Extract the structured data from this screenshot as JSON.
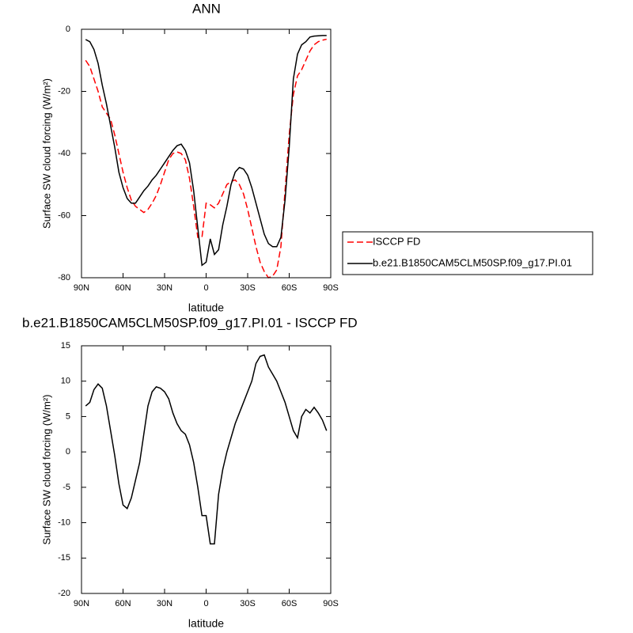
{
  "chart_data": [
    {
      "type": "line",
      "title": "ANN",
      "x_label": "latitude",
      "y_label": "Surface SW cloud forcing (W/m²)",
      "x": [
        87,
        84,
        81,
        78,
        75,
        72,
        69,
        66,
        63,
        60,
        57,
        54,
        51,
        48,
        45,
        42,
        39,
        36,
        33,
        30,
        27,
        24,
        21,
        18,
        15,
        12,
        9,
        6,
        3,
        0,
        -3,
        -6,
        -9,
        -12,
        -15,
        -18,
        -21,
        -24,
        -27,
        -30,
        -33,
        -36,
        -39,
        -42,
        -45,
        -48,
        -51,
        -54,
        -57,
        -60,
        -63,
        -66,
        -69,
        -72,
        -75,
        -78,
        -81,
        -84,
        -87
      ],
      "xlim": [
        90,
        -90
      ],
      "xticks": [
        {
          "value": 90,
          "label": "90N"
        },
        {
          "value": 60,
          "label": "60N"
        },
        {
          "value": 30,
          "label": "30N"
        },
        0,
        {
          "value": -30,
          "label": "30S"
        },
        {
          "value": -60,
          "label": "60S"
        },
        {
          "value": -90,
          "label": "90S"
        }
      ],
      "ylim": [
        -80,
        0
      ],
      "yticks": [
        0,
        -20,
        -40,
        -60,
        -80
      ],
      "legend": "outside-right",
      "series": [
        {
          "name": "ISCCP FD",
          "color": "#ff0000",
          "style": "dashed",
          "values": [
            -10,
            -12,
            -16,
            -20,
            -25,
            -27,
            -29,
            -34,
            -40,
            -46,
            -51,
            -55,
            -57,
            -58,
            -59,
            -58,
            -56,
            -53.5,
            -50,
            -46,
            -42,
            -40,
            -39.5,
            -40,
            -42,
            -48,
            -57,
            -67,
            -67,
            -56,
            -56.5,
            -57.5,
            -56,
            -53,
            -50,
            -49,
            -48.5,
            -50,
            -53,
            -58,
            -64,
            -70,
            -75,
            -78,
            -80,
            -79.5,
            -77.5,
            -70,
            -52,
            -34,
            -21,
            -15,
            -13,
            -10,
            -7,
            -5,
            -4,
            -3.5,
            -3.2
          ]
        },
        {
          "name": "b.e21.B1850CAM5CLM50SP.f09_g17.PI.01",
          "color": "#000000",
          "style": "solid",
          "values": [
            -3.3,
            -4,
            -6.5,
            -11,
            -18,
            -24,
            -31,
            -38,
            -46,
            -51,
            -54.5,
            -56,
            -56,
            -54,
            -52,
            -50.5,
            -48.5,
            -47,
            -45,
            -43,
            -41,
            -39,
            -37.5,
            -37,
            -39,
            -43,
            -52,
            -64,
            -76,
            -75,
            -67.5,
            -72.5,
            -71,
            -63,
            -57,
            -50,
            -46,
            -44.5,
            -45,
            -47,
            -51,
            -56,
            -61,
            -66,
            -69,
            -70,
            -70,
            -67,
            -55,
            -38,
            -16,
            -8,
            -5,
            -4,
            -2.5,
            -2.2,
            -2.1,
            -2,
            -2
          ]
        }
      ]
    },
    {
      "type": "line",
      "title": "b.e21.B1850CAM5CLM50SP.f09_g17.PI.01 - ISCCP FD",
      "x_label": "latitude",
      "y_label": "Surface SW cloud forcing (W/m²)",
      "x": [
        87,
        84,
        81,
        78,
        75,
        72,
        69,
        66,
        63,
        60,
        57,
        54,
        51,
        48,
        45,
        42,
        39,
        36,
        33,
        30,
        27,
        24,
        21,
        18,
        15,
        12,
        9,
        6,
        3,
        0,
        -3,
        -6,
        -9,
        -12,
        -15,
        -18,
        -21,
        -24,
        -27,
        -30,
        -33,
        -36,
        -39,
        -42,
        -45,
        -48,
        -51,
        -54,
        -57,
        -60,
        -63,
        -66,
        -69,
        -72,
        -75,
        -78,
        -81,
        -84,
        -87
      ],
      "xlim": [
        90,
        -90
      ],
      "xticks": [
        {
          "value": 90,
          "label": "90N"
        },
        {
          "value": 60,
          "label": "60N"
        },
        {
          "value": 30,
          "label": "30N"
        },
        0,
        {
          "value": -30,
          "label": "30S"
        },
        {
          "value": -60,
          "label": "60S"
        },
        {
          "value": -90,
          "label": "90S"
        }
      ],
      "ylim": [
        -20,
        15
      ],
      "yticks": [
        15,
        10,
        5,
        0,
        -5,
        -10,
        -15,
        -20
      ],
      "series": [
        {
          "color": "#000000",
          "style": "solid",
          "values": [
            6.5,
            7,
            8.8,
            9.6,
            9,
            6.5,
            3,
            -0.5,
            -4.5,
            -7.5,
            -8,
            -6.5,
            -4,
            -1.5,
            2.5,
            6.5,
            8.5,
            9.2,
            9,
            8.5,
            7.5,
            5.5,
            4,
            3,
            2.5,
            1,
            -1.5,
            -5,
            -9,
            -9,
            -13,
            -13,
            -6,
            -2.5,
            0,
            2,
            4,
            5.5,
            7,
            8.5,
            10,
            12.5,
            13.5,
            13.7,
            12,
            11,
            10,
            8.5,
            7,
            5,
            3,
            2,
            5,
            6,
            5.5,
            6.3,
            5.5,
            4.5,
            3
          ]
        }
      ]
    }
  ]
}
